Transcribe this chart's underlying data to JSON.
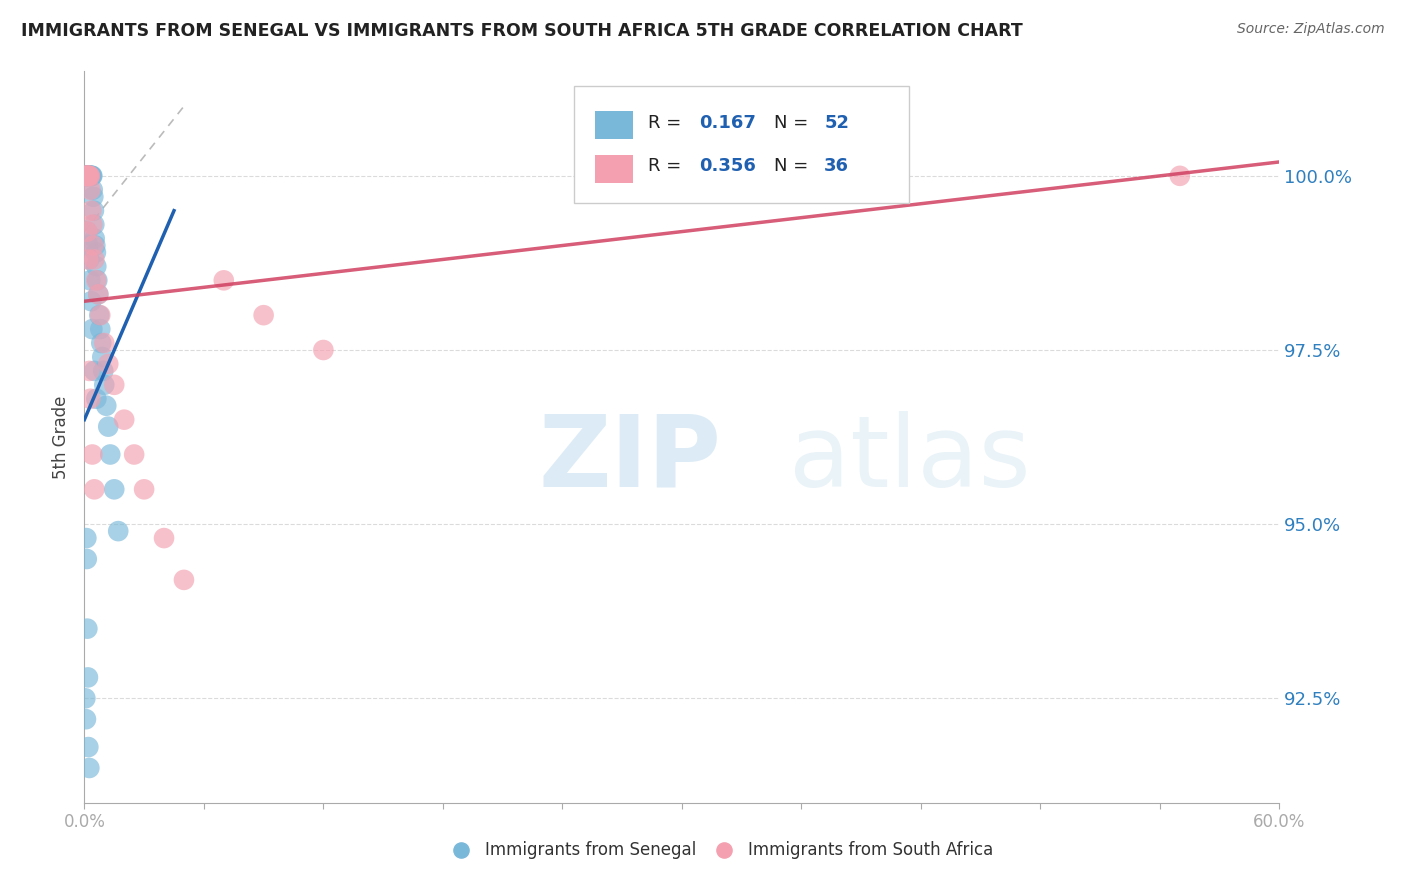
{
  "title": "IMMIGRANTS FROM SENEGAL VS IMMIGRANTS FROM SOUTH AFRICA 5TH GRADE CORRELATION CHART",
  "source": "Source: ZipAtlas.com",
  "ylabel": "5th Grade",
  "xlim": [
    0.0,
    60.0
  ],
  "ylim": [
    91.0,
    101.5
  ],
  "yticks": [
    92.5,
    95.0,
    97.5,
    100.0
  ],
  "ytick_labels": [
    "92.5%",
    "95.0%",
    "97.5%",
    "100.0%"
  ],
  "color_senegal": "#7ab8d9",
  "color_south_africa": "#f4a0b0",
  "trendline_senegal": "#2060b0",
  "trendline_sa": "#d04060",
  "background_color": "#ffffff",
  "senegal_x": [
    0.05,
    0.08,
    0.1,
    0.12,
    0.15,
    0.18,
    0.2,
    0.22,
    0.25,
    0.28,
    0.3,
    0.32,
    0.35,
    0.38,
    0.4,
    0.42,
    0.45,
    0.48,
    0.5,
    0.52,
    0.55,
    0.58,
    0.6,
    0.65,
    0.7,
    0.75,
    0.8,
    0.85,
    0.9,
    0.95,
    1.0,
    1.1,
    1.2,
    1.3,
    1.5,
    1.7,
    0.15,
    0.2,
    0.25,
    0.3,
    0.35,
    0.4,
    0.5,
    0.6,
    0.1,
    0.12,
    0.15,
    0.18,
    0.05,
    0.08,
    0.2,
    0.25
  ],
  "senegal_y": [
    100.0,
    100.0,
    100.0,
    100.0,
    100.0,
    100.0,
    100.0,
    100.0,
    100.0,
    100.0,
    100.0,
    100.0,
    100.0,
    100.0,
    100.0,
    99.8,
    99.7,
    99.5,
    99.3,
    99.1,
    99.0,
    98.9,
    98.7,
    98.5,
    98.3,
    98.0,
    97.8,
    97.6,
    97.4,
    97.2,
    97.0,
    96.7,
    96.4,
    96.0,
    95.5,
    94.9,
    99.2,
    99.0,
    98.8,
    98.5,
    98.2,
    97.8,
    97.2,
    96.8,
    94.8,
    94.5,
    93.5,
    92.8,
    92.5,
    92.2,
    91.8,
    91.5
  ],
  "sa_x": [
    0.05,
    0.08,
    0.1,
    0.12,
    0.15,
    0.18,
    0.2,
    0.22,
    0.25,
    0.28,
    0.3,
    0.35,
    0.4,
    0.45,
    0.5,
    0.6,
    0.7,
    0.8,
    1.0,
    1.2,
    1.5,
    2.0,
    2.5,
    3.0,
    4.0,
    5.0,
    7.0,
    9.0,
    12.0,
    55.0,
    0.15,
    0.2,
    0.25,
    0.3,
    0.4,
    0.5
  ],
  "sa_y": [
    100.0,
    100.0,
    100.0,
    100.0,
    100.0,
    100.0,
    100.0,
    100.0,
    100.0,
    100.0,
    99.8,
    99.5,
    99.3,
    99.0,
    98.8,
    98.5,
    98.3,
    98.0,
    97.6,
    97.3,
    97.0,
    96.5,
    96.0,
    95.5,
    94.8,
    94.2,
    98.5,
    98.0,
    97.5,
    100.0,
    99.2,
    98.8,
    97.2,
    96.8,
    96.0,
    95.5
  ],
  "senegal_trend_x0": 0.0,
  "senegal_trend_y0": 96.5,
  "senegal_trend_x1": 4.5,
  "senegal_trend_y1": 99.5,
  "sa_trend_x0": 0.0,
  "sa_trend_y0": 98.2,
  "sa_trend_x1": 60.0,
  "sa_trend_y1": 100.2,
  "ref_line_x0": 0.0,
  "ref_line_y0": 99.2,
  "ref_line_x1": 5.0,
  "ref_line_y1": 101.0
}
